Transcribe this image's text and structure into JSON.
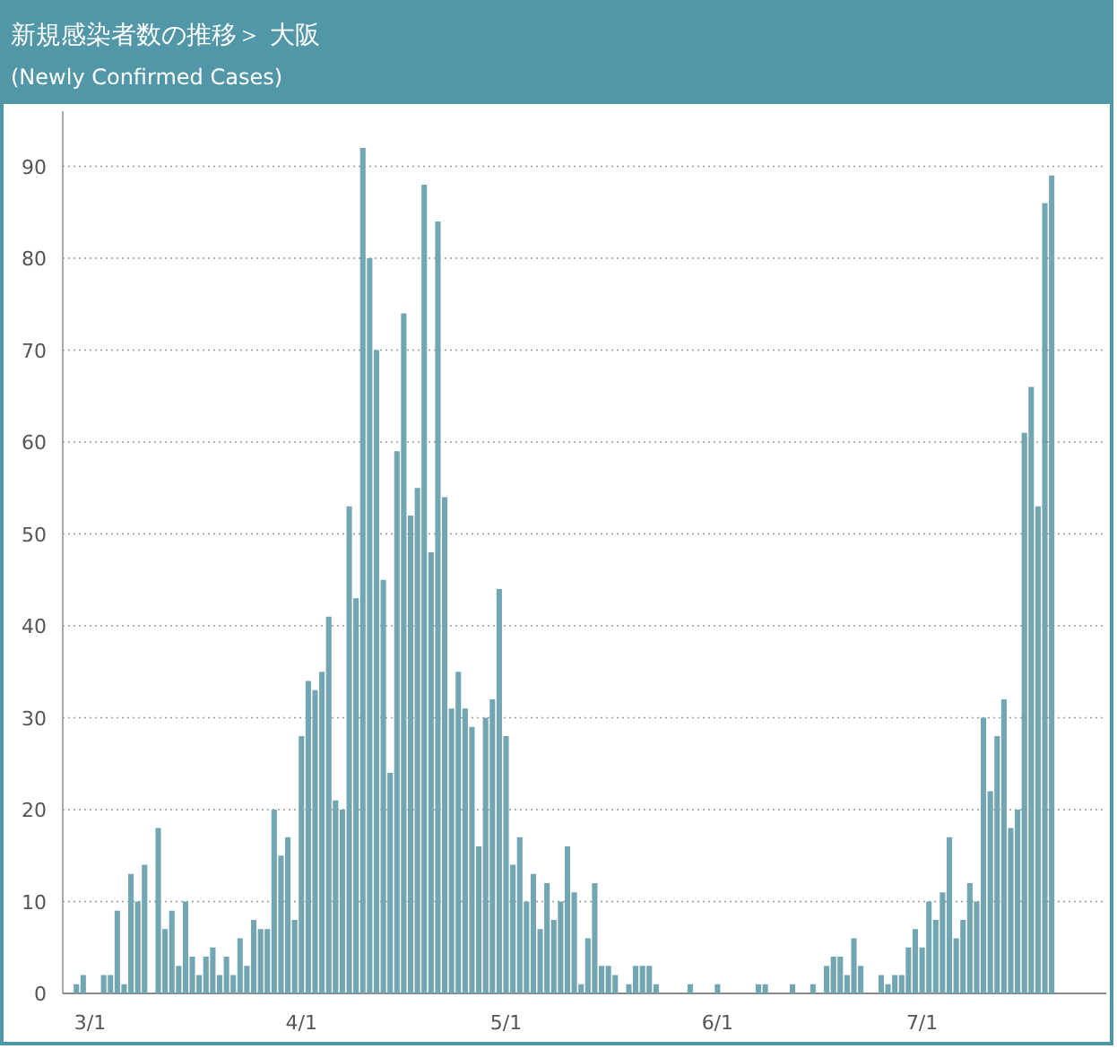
{
  "chart_data": {
    "type": "bar",
    "title": "新規感染者数の推移＞ 大阪",
    "subtitle": "(Newly Confirmed Cases)",
    "color": "#73a6b3",
    "x": [
      "--02-28",
      "--02-29",
      "--03-01",
      "--03-02",
      "--03-03",
      "--03-04",
      "--03-05",
      "--03-06",
      "--03-07",
      "--03-08",
      "--03-09",
      "--03-10",
      "--03-11",
      "--03-12",
      "--03-13",
      "--03-14",
      "--03-15",
      "--03-16",
      "--03-17",
      "--03-18",
      "--03-19",
      "--03-20",
      "--03-21",
      "--03-22",
      "--03-23",
      "--03-24",
      "--03-25",
      "--03-26",
      "--03-27",
      "--03-28",
      "--03-29",
      "--03-30",
      "--03-31",
      "--04-01",
      "--04-02",
      "--04-03",
      "--04-04",
      "--04-05",
      "--04-06",
      "--04-07",
      "--04-08",
      "--04-09",
      "--04-10",
      "--04-11",
      "--04-12",
      "--04-13",
      "--04-14",
      "--04-15",
      "--04-16",
      "--04-17",
      "--04-18",
      "--04-19",
      "--04-20",
      "--04-21",
      "--04-22",
      "--04-23",
      "--04-24",
      "--04-25",
      "--04-26",
      "--04-27",
      "--04-28",
      "--04-29",
      "--04-30",
      "--05-01",
      "--05-02",
      "--05-03",
      "--05-04",
      "--05-05",
      "--05-06",
      "--05-07",
      "--05-08",
      "--05-09",
      "--05-10",
      "--05-11",
      "--05-12",
      "--05-13",
      "--05-14",
      "--05-15",
      "--05-16",
      "--05-17",
      "--05-18",
      "--05-19",
      "--05-20",
      "--05-21",
      "--05-22",
      "--05-23",
      "--05-24",
      "--05-25",
      "--05-26",
      "--05-27",
      "--05-28",
      "--05-29",
      "--05-30",
      "--05-31",
      "--06-01",
      "--06-02",
      "--06-03",
      "--06-04",
      "--06-05",
      "--06-06",
      "--06-07",
      "--06-08",
      "--06-09",
      "--06-10",
      "--06-11",
      "--06-12",
      "--06-13",
      "--06-14",
      "--06-15",
      "--06-16",
      "--06-17",
      "--06-18",
      "--06-19",
      "--06-20",
      "--06-21",
      "--06-22",
      "--06-23",
      "--06-24",
      "--06-25",
      "--06-26",
      "--06-27",
      "--06-28",
      "--06-29",
      "--06-30",
      "--07-01",
      "--07-02",
      "--07-03",
      "--07-04",
      "--07-05",
      "--07-06",
      "--07-07",
      "--07-08",
      "--07-09",
      "--07-10",
      "--07-11",
      "--07-12",
      "--07-13",
      "--07-14",
      "--07-15",
      "--07-16",
      "--07-17",
      "--07-18",
      "--07-19",
      "--07-20"
    ],
    "values": [
      1,
      2,
      0,
      0,
      2,
      2,
      9,
      1,
      13,
      10,
      14,
      0,
      18,
      7,
      9,
      3,
      10,
      4,
      2,
      4,
      5,
      2,
      4,
      2,
      6,
      3,
      8,
      7,
      7,
      20,
      15,
      17,
      8,
      28,
      34,
      33,
      35,
      41,
      21,
      20,
      53,
      43,
      92,
      80,
      70,
      45,
      24,
      59,
      74,
      52,
      55,
      88,
      48,
      84,
      54,
      31,
      35,
      31,
      29,
      16,
      30,
      32,
      44,
      28,
      14,
      17,
      10,
      13,
      7,
      12,
      8,
      10,
      16,
      11,
      1,
      6,
      12,
      3,
      3,
      2,
      0,
      1,
      3,
      3,
      3,
      1,
      0,
      0,
      0,
      0,
      1,
      0,
      0,
      0,
      1,
      0,
      0,
      0,
      0,
      0,
      1,
      1,
      0,
      0,
      0,
      1,
      0,
      0,
      1,
      0,
      3,
      4,
      4,
      2,
      6,
      3,
      0,
      0,
      2,
      1,
      2,
      2,
      5,
      7,
      5,
      10,
      8,
      11,
      17,
      6,
      8,
      12,
      10,
      30,
      22,
      28,
      32,
      18,
      20,
      61,
      66,
      53,
      86,
      89
    ],
    "xlim": [
      "--02-26",
      "--07-28"
    ],
    "xticks": [
      {
        "value": "--03-01",
        "label": "3/1"
      },
      {
        "value": "--04-01",
        "label": "4/1"
      },
      {
        "value": "--05-01",
        "label": "5/1"
      },
      {
        "value": "--06-01",
        "label": "6/1"
      },
      {
        "value": "--07-01",
        "label": "7/1"
      }
    ],
    "ylim": [
      0,
      96
    ],
    "yticks": [
      0,
      10,
      20,
      30,
      40,
      50,
      60,
      70,
      80,
      90
    ],
    "grid": "y"
  }
}
